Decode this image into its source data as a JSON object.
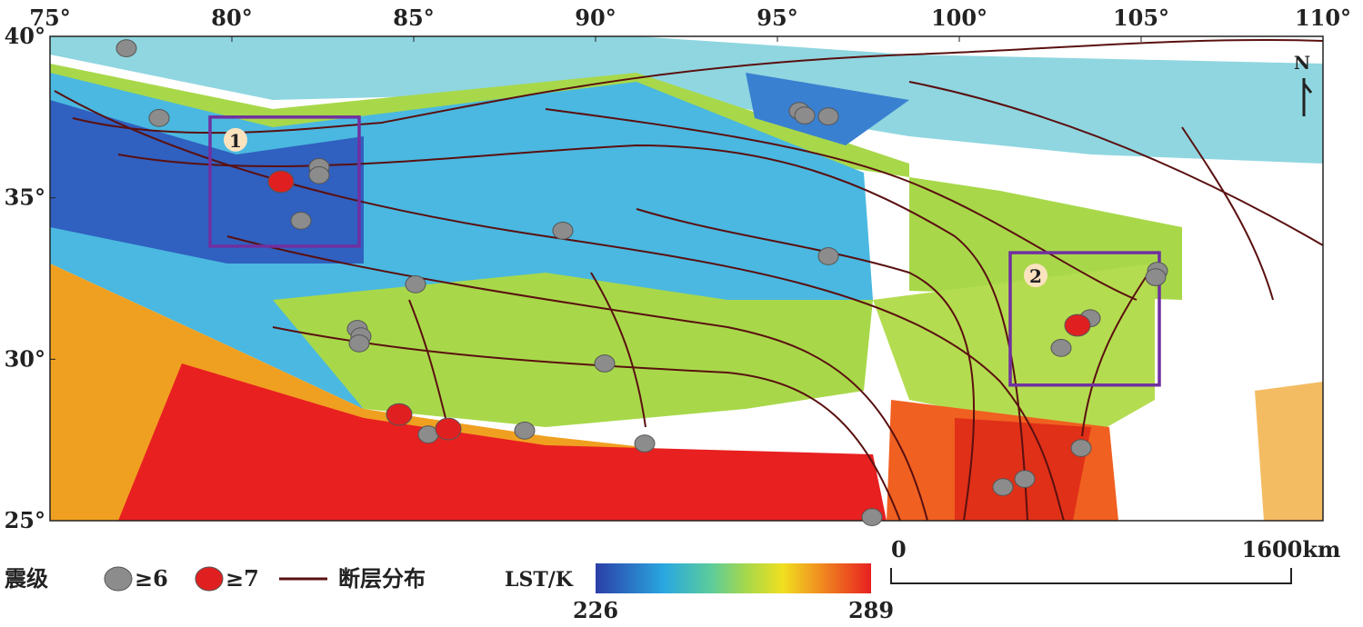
{
  "map": {
    "xticks": [
      {
        "value": 75,
        "label": "75°"
      },
      {
        "value": 80,
        "label": "80°"
      },
      {
        "value": 85,
        "label": "85°"
      },
      {
        "value": 90,
        "label": "90°"
      },
      {
        "value": 95,
        "label": "95°"
      },
      {
        "value": 100,
        "label": "100°"
      },
      {
        "value": 105,
        "label": "105°"
      },
      {
        "value": 110,
        "label": "110°"
      }
    ],
    "yticks": [
      {
        "value": 25,
        "label": "25°"
      },
      {
        "value": 30,
        "label": "30°"
      },
      {
        "value": 35,
        "label": "35°"
      },
      {
        "value": 40,
        "label": "40°"
      }
    ],
    "xlim": [
      75,
      110
    ],
    "ylim": [
      25,
      40
    ],
    "north": "N",
    "regions": [
      {
        "label": "1",
        "lon": [
          79.4,
          83.5
        ],
        "lat": [
          33.5,
          37.5
        ]
      },
      {
        "label": "2",
        "lon": [
          101.4,
          105.5
        ],
        "lat": [
          29.2,
          33.3
        ]
      }
    ],
    "earthquakes": [
      {
        "label": "≥6",
        "color": "#8c8c8c",
        "points": [
          [
            77.1,
            39.63
          ],
          [
            78.0,
            37.47
          ],
          [
            82.4,
            35.95
          ],
          [
            82.4,
            35.7
          ],
          [
            81.9,
            34.29
          ],
          [
            89.1,
            33.98
          ],
          [
            95.6,
            37.69
          ],
          [
            95.75,
            37.55
          ],
          [
            96.4,
            37.52
          ],
          [
            96.4,
            33.19
          ],
          [
            85.05,
            32.32
          ],
          [
            83.45,
            30.94
          ],
          [
            83.55,
            30.71
          ],
          [
            83.5,
            30.49
          ],
          [
            90.25,
            29.87
          ],
          [
            85.4,
            27.67
          ],
          [
            88.05,
            27.79
          ],
          [
            91.35,
            27.39
          ],
          [
            97.6,
            25.11
          ],
          [
            101.2,
            26.04
          ],
          [
            101.8,
            26.29
          ],
          [
            103.35,
            27.25
          ],
          [
            102.8,
            30.35
          ],
          [
            103.6,
            31.27
          ],
          [
            105.45,
            32.74
          ],
          [
            105.4,
            32.54
          ]
        ]
      },
      {
        "label": "≥7",
        "color": "#e02020",
        "points": [
          [
            81.35,
            35.5
          ],
          [
            84.6,
            28.29
          ],
          [
            85.95,
            27.84
          ],
          [
            103.25,
            31.05
          ]
        ]
      }
    ]
  },
  "legend": {
    "title": "震级",
    "fault": "断层分布"
  },
  "colorbar": {
    "label": "LST/K",
    "ticks": [
      226,
      289
    ]
  },
  "scalebar": {
    "ticks": [
      0,
      {
        "value": 1600,
        "label": "1600km"
      }
    ]
  }
}
